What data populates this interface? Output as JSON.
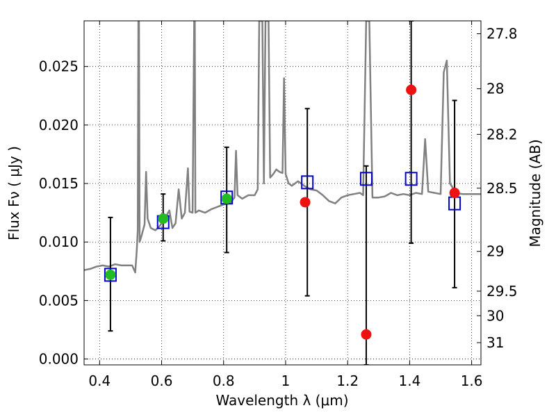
{
  "chart_data": {
    "type": "scatter",
    "xlabel": "Wavelength  λ (μm)",
    "ylabel": "Flux  Fν  ( μJy )",
    "ylabel_right": "Magnitude (AB)",
    "xlim": [
      0.35,
      1.63
    ],
    "ylim": [
      -0.0005,
      0.0289
    ],
    "grid": true,
    "x_ticks": [
      0.4,
      0.6,
      0.8,
      1.0,
      1.2,
      1.4,
      1.6
    ],
    "x_tick_labels": [
      "0.4",
      "0.6",
      "0.8",
      "1",
      "1.2",
      "1.4",
      "1.6"
    ],
    "y_ticks": [
      0.0,
      0.005,
      0.01,
      0.015,
      0.02,
      0.025
    ],
    "y_tick_labels": [
      "0.000",
      "0.005",
      "0.010",
      "0.015",
      "0.020",
      "0.025"
    ],
    "right_ticks": [
      {
        "label": "27.8",
        "flux": 0.0278
      },
      {
        "label": "28",
        "flux": 0.0231
      },
      {
        "label": "28.2",
        "flux": 0.0192
      },
      {
        "label": "28.5",
        "flux": 0.0146
      },
      {
        "label": "29",
        "flux": 0.0092
      },
      {
        "label": "29.5",
        "flux": 0.0058
      },
      {
        "label": "30",
        "flux": 0.0037
      },
      {
        "label": "31",
        "flux": 0.0014
      }
    ],
    "colors": {
      "spectrum": "#808080",
      "green": "#22bb22",
      "red": "#ee1111",
      "square": "#0000cc",
      "errorbar": "#000000"
    },
    "series": [
      {
        "kind": "line",
        "points": [
          [
            0.35,
            0.0076
          ],
          [
            0.37,
            0.0077
          ],
          [
            0.39,
            0.0079
          ],
          [
            0.41,
            0.008
          ],
          [
            0.43,
            0.0079
          ],
          [
            0.45,
            0.0081
          ],
          [
            0.47,
            0.008
          ],
          [
            0.49,
            0.008
          ],
          [
            0.505,
            0.008
          ],
          [
            0.515,
            0.0074
          ],
          [
            0.52,
            0.0093
          ],
          [
            0.523,
            0.011
          ],
          [
            0.525,
            0.0289
          ],
          [
            0.527,
            0.0289
          ],
          [
            0.529,
            0.01
          ],
          [
            0.535,
            0.0105
          ],
          [
            0.545,
            0.0115
          ],
          [
            0.55,
            0.016
          ],
          [
            0.555,
            0.012
          ],
          [
            0.565,
            0.0112
          ],
          [
            0.58,
            0.011
          ],
          [
            0.595,
            0.0114
          ],
          [
            0.61,
            0.012
          ],
          [
            0.625,
            0.0127
          ],
          [
            0.635,
            0.0112
          ],
          [
            0.645,
            0.0116
          ],
          [
            0.655,
            0.0145
          ],
          [
            0.665,
            0.012
          ],
          [
            0.675,
            0.0125
          ],
          [
            0.685,
            0.0163
          ],
          [
            0.69,
            0.0126
          ],
          [
            0.7,
            0.0125
          ],
          [
            0.705,
            0.0289
          ],
          [
            0.707,
            0.0289
          ],
          [
            0.709,
            0.0125
          ],
          [
            0.72,
            0.0127
          ],
          [
            0.74,
            0.0125
          ],
          [
            0.76,
            0.0128
          ],
          [
            0.78,
            0.013
          ],
          [
            0.8,
            0.0132
          ],
          [
            0.82,
            0.0133
          ],
          [
            0.835,
            0.0138
          ],
          [
            0.84,
            0.0178
          ],
          [
            0.845,
            0.014
          ],
          [
            0.86,
            0.0137
          ],
          [
            0.88,
            0.014
          ],
          [
            0.9,
            0.014
          ],
          [
            0.91,
            0.0145
          ],
          [
            0.915,
            0.0289
          ],
          [
            0.925,
            0.0289
          ],
          [
            0.93,
            0.015
          ],
          [
            0.935,
            0.0289
          ],
          [
            0.945,
            0.0289
          ],
          [
            0.95,
            0.0155
          ],
          [
            0.96,
            0.0158
          ],
          [
            0.97,
            0.0162
          ],
          [
            0.98,
            0.016
          ],
          [
            0.99,
            0.0159
          ],
          [
            0.995,
            0.024
          ],
          [
            1.0,
            0.0158
          ],
          [
            1.01,
            0.015
          ],
          [
            1.02,
            0.0148
          ],
          [
            1.04,
            0.0152
          ],
          [
            1.06,
            0.0148
          ],
          [
            1.08,
            0.0145
          ],
          [
            1.1,
            0.0144
          ],
          [
            1.12,
            0.014
          ],
          [
            1.14,
            0.0135
          ],
          [
            1.16,
            0.0133
          ],
          [
            1.18,
            0.0138
          ],
          [
            1.2,
            0.014
          ],
          [
            1.22,
            0.0141
          ],
          [
            1.24,
            0.0142
          ],
          [
            1.25,
            0.014
          ],
          [
            1.26,
            0.0289
          ],
          [
            1.27,
            0.0289
          ],
          [
            1.28,
            0.0138
          ],
          [
            1.3,
            0.0138
          ],
          [
            1.32,
            0.0139
          ],
          [
            1.34,
            0.0142
          ],
          [
            1.36,
            0.014
          ],
          [
            1.38,
            0.0141
          ],
          [
            1.4,
            0.014
          ],
          [
            1.42,
            0.0142
          ],
          [
            1.44,
            0.0141
          ],
          [
            1.45,
            0.0188
          ],
          [
            1.46,
            0.0143
          ],
          [
            1.48,
            0.0142
          ],
          [
            1.5,
            0.0141
          ],
          [
            1.51,
            0.0245
          ],
          [
            1.52,
            0.0255
          ],
          [
            1.53,
            0.015
          ],
          [
            1.55,
            0.0142
          ],
          [
            1.57,
            0.0141
          ],
          [
            1.6,
            0.0141
          ],
          [
            1.63,
            0.0141
          ]
        ]
      },
      {
        "kind": "squares",
        "x": [
          0.435,
          0.605,
          0.81,
          1.07,
          1.26,
          1.405,
          1.545
        ],
        "y": [
          0.0072,
          0.0117,
          0.0138,
          0.0151,
          0.0154,
          0.0154,
          0.0133
        ]
      },
      {
        "kind": "errorbars",
        "x": [
          0.435,
          0.605,
          0.81,
          1.07,
          1.26,
          1.405,
          1.545
        ],
        "low": [
          0.0024,
          0.0101,
          0.0091,
          0.0054,
          -0.0005,
          0.0099,
          0.0061
        ],
        "high": [
          0.0121,
          0.0141,
          0.0181,
          0.0214,
          0.0165,
          0.0289,
          0.0221
        ]
      },
      {
        "kind": "points-green",
        "x": [
          0.435,
          0.605,
          0.81
        ],
        "y": [
          0.0072,
          0.012,
          0.0137
        ]
      },
      {
        "kind": "points-red",
        "x": [
          1.063,
          1.26,
          1.405,
          1.545
        ],
        "y": [
          0.0134,
          0.0021,
          0.023,
          0.0142
        ]
      }
    ]
  }
}
